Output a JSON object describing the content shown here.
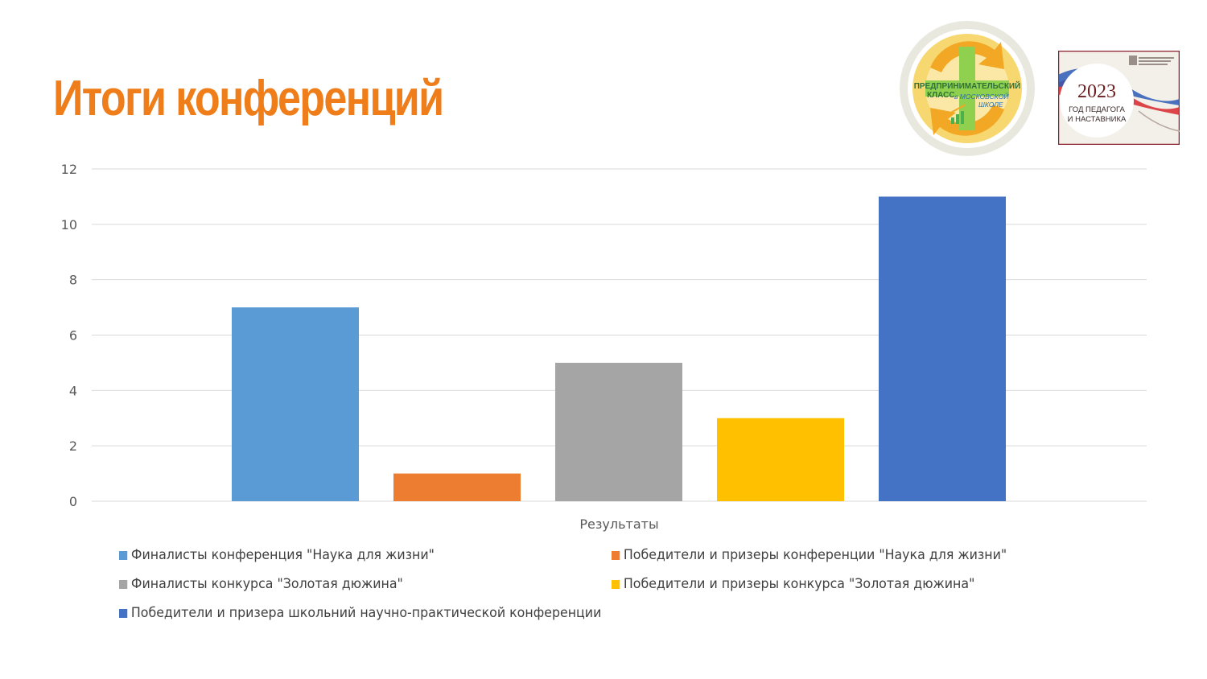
{
  "title": "Итоги конференций",
  "logos": {
    "pk": {
      "line1": "ПРЕДПРИНИМАТЕЛЬСКИЙ",
      "line2": "КЛАСС",
      "line3": "в МОСКОВСКОЙ",
      "line4": "ШКОЛЕ"
    },
    "year": {
      "year": "2023",
      "line1": "ГОД ПЕДАГОГА",
      "line2": "И НАСТАВНИКА"
    }
  },
  "chart_data": {
    "type": "bar",
    "categories": [
      "Результаты"
    ],
    "xlabel": "",
    "ylabel": "",
    "ylim": [
      0,
      12
    ],
    "yticks": [
      0,
      2,
      4,
      6,
      8,
      10,
      12
    ],
    "grid": true,
    "legend_position": "bottom",
    "series": [
      {
        "name": "Финалисты конференция \"Наука для жизни\"",
        "values": [
          7
        ],
        "color": "#5b9bd5"
      },
      {
        "name": "Победители и призеры конференции \"Наука для жизни\"",
        "values": [
          1
        ],
        "color": "#ed7d31"
      },
      {
        "name": "Финалисты конкурса \"Золотая дюжина\"",
        "values": [
          5
        ],
        "color": "#a5a5a5"
      },
      {
        "name": "Победители и призеры конкурса \"Золотая дюжина\"",
        "values": [
          3
        ],
        "color": "#ffc000"
      },
      {
        "name": "Победители и призера школьний научно-практической конференции",
        "values": [
          11
        ],
        "color": "#4472c4"
      }
    ]
  }
}
